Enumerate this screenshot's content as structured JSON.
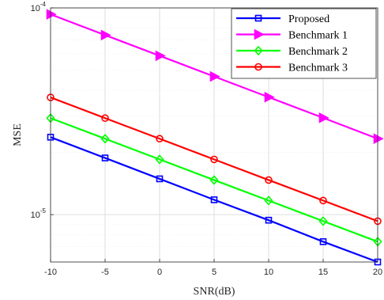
{
  "chart_data": {
    "type": "line",
    "title": "",
    "xlabel": "SNR(dB)",
    "ylabel": "MSE",
    "x": [
      -10,
      -5,
      0,
      5,
      10,
      15,
      20
    ],
    "x_ticks": [
      "-10",
      "-5",
      "0",
      "5",
      "10",
      "15",
      "20"
    ],
    "xlim": [
      -10,
      20
    ],
    "y_scale": "log",
    "ylim": [
      5.9e-06,
      0.0001
    ],
    "y_ticks": [
      {
        "value": 1e-05,
        "base": "10",
        "exp": "-5"
      },
      {
        "value": 0.0001,
        "base": "10",
        "exp": "-4"
      }
    ],
    "grid": true,
    "legend_position": "top-right",
    "series": [
      {
        "name": "Proposed",
        "color": "#0000ff",
        "marker": "square",
        "values": [
          2.37e-05,
          1.88e-05,
          1.49e-05,
          1.18e-05,
          9.4e-06,
          7.4e-06,
          5.9e-06
        ]
      },
      {
        "name": "Benchmark 1",
        "color": "#ff00ff",
        "marker": "triangle-right",
        "values": [
          9.31e-05,
          7.39e-05,
          5.87e-05,
          4.66e-05,
          3.7e-05,
          2.94e-05,
          2.33e-05
        ]
      },
      {
        "name": "Benchmark 2",
        "color": "#00ff00",
        "marker": "diamond",
        "values": [
          2.93e-05,
          2.33e-05,
          1.85e-05,
          1.47e-05,
          1.17e-05,
          9.3e-06,
          7.4e-06
        ]
      },
      {
        "name": "Benchmark 3",
        "color": "#ff0000",
        "marker": "circle",
        "values": [
          3.69e-05,
          2.93e-05,
          2.33e-05,
          1.85e-05,
          1.47e-05,
          1.17e-05,
          9.3e-06
        ]
      }
    ]
  }
}
